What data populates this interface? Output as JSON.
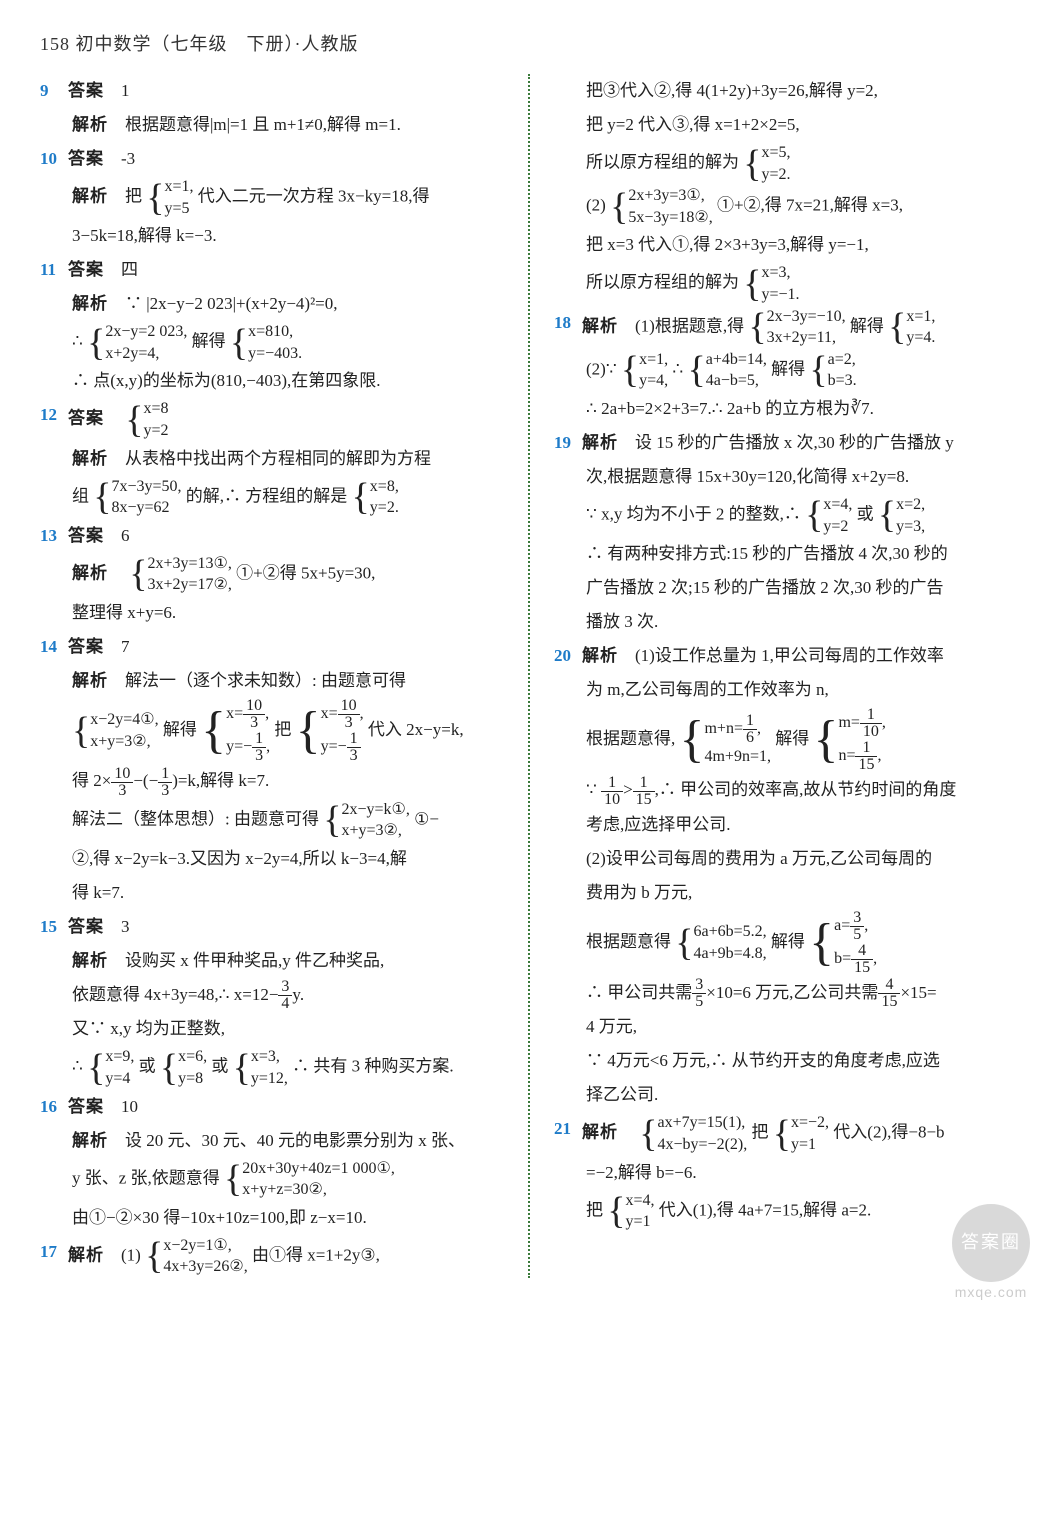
{
  "header": "158 初中数学（七年级　下册）·人教版",
  "left": {
    "q9": {
      "num": "9",
      "ans_label": "答案",
      "ans": "1",
      "exp_label": "解析",
      "exp": "根据题意得|m|=1 且 m+1≠0,解得 m=1."
    },
    "q10": {
      "num": "10",
      "ans_label": "答案",
      "ans": "-3",
      "exp_label": "解析",
      "exp_pre": "把",
      "sys_r1": "x=1,",
      "sys_r2": "y=5",
      "exp_mid": "代入二元一次方程 3x−ky=18,得",
      "exp2": "3−5k=18,解得 k=−3."
    },
    "q11": {
      "num": "11",
      "ans_label": "答案",
      "ans": "四",
      "exp_label": "解析",
      "l1": "∵ |2x−y−2 023|+(x+2y−4)²=0,",
      "l2_pre": "∴ ",
      "l2_s1": "2x−y=2 023,",
      "l2_s2": "x+2y=4,",
      "l2_mid": "解得",
      "l2_t1": "x=810,",
      "l2_t2": "y=−403.",
      "l3": "∴ 点(x,y)的坐标为(810,−403),在第四象限."
    },
    "q12": {
      "num": "12",
      "ans_label": "答案",
      "s1": "x=8",
      "s2": "y=2",
      "exp_label": "解析",
      "l1": "从表格中找出两个方程相同的解即为方程",
      "l2_pre": "组",
      "l2_s1": "7x−3y=50,",
      "l2_s2": "8x−y=62",
      "l2_mid": "的解,∴ 方程组的解是",
      "l2_t1": "x=8,",
      "l2_t2": "y=2."
    },
    "q13": {
      "num": "13",
      "ans_label": "答案",
      "ans": "6",
      "exp_label": "解析",
      "s1": "2x+3y=13①,",
      "s2": "3x+2y=17②,",
      "mid": "①+②得 5x+5y=30,",
      "l2": "整理得 x+y=6."
    },
    "q14": {
      "num": "14",
      "ans_label": "答案",
      "ans": "7",
      "exp_label": "解析",
      "l1": "解法一（逐个求未知数）: 由题意可得",
      "s1": "x−2y=4①,",
      "s2": "x+y=3②,",
      "mid1": "解得",
      "t1a": "x=",
      "t1n": "10",
      "t1d": "3",
      "t1c": ",",
      "t2a": "y=−",
      "t2n": "1",
      "t2d": "3",
      "t2c": ",",
      "mid2": "把",
      "u1a": "x=",
      "u1n": "10",
      "u1d": "3",
      "u1c": ",",
      "u2a": "y=−",
      "u2n": "1",
      "u2d": "3",
      "mid3": "代入 2x−y=k,",
      "l2a": "得 2×",
      "l2n1": "10",
      "l2d1": "3",
      "l2b": "−(−",
      "l2n2": "1",
      "l2d2": "3",
      "l2c": ")=k,解得 k=7.",
      "l3a": "解法二（整体思想）: 由题意可得",
      "v1": "2x−y=k①,",
      "v2": "x+y=3②,",
      "l3b": "①−",
      "l4": "②,得 x−2y=k−3.又因为 x−2y=4,所以 k−3=4,解",
      "l5": "得 k=7."
    },
    "q15": {
      "num": "15",
      "ans_label": "答案",
      "ans": "3",
      "exp_label": "解析",
      "l1": "设购买 x 件甲种奖品,y 件乙种奖品,",
      "l2a": "依题意得 4x+3y=48,∴ x=12−",
      "l2n": "3",
      "l2d": "4",
      "l2b": "y.",
      "l3": "又∵ x,y 均为正整数,",
      "l4_pre": "∴ ",
      "a1": "x=9,",
      "a2": "y=4",
      "or1": "或",
      "b1": "x=6,",
      "b2": "y=8",
      "or2": "或",
      "c1": "x=3,",
      "c2": "y=12,",
      "l4_end": "∴ 共有 3 种购买方案."
    },
    "q16": {
      "num": "16",
      "ans_label": "答案",
      "ans": "10",
      "exp_label": "解析",
      "l1": "设 20 元、30 元、40 元的电影票分别为 x 张、",
      "l2_pre": "y 张、z 张,依题意得",
      "s1": "20x+30y+40z=1 000①,",
      "s2": "x+y+z=30②,",
      "l3": "由①−②×30 得−10x+10z=100,即 z−x=10."
    },
    "q17": {
      "num": "17",
      "exp_label": "解析",
      "pre": "(1)",
      "s1": "x−2y=1①,",
      "s2": "4x+3y=26②,",
      "mid": "由①得 x=1+2y③,"
    }
  },
  "right": {
    "q17c": {
      "l1": "把③代入②,得 4(1+2y)+3y=26,解得 y=2,",
      "l2": "把 y=2 代入③,得 x=1+2×2=5,",
      "l3_pre": "所以原方程组的解为",
      "l3_s1": "x=5,",
      "l3_s2": "y=2.",
      "l4_pre": "(2)",
      "l4_s1": "2x+3y=3①,",
      "l4_s2": "5x−3y=18②,",
      "l4_mid": "①+②,得 7x=21,解得 x=3,",
      "l5": "把 x=3 代入①,得 2×3+3y=3,解得 y=−1,",
      "l6_pre": "所以原方程组的解为",
      "l6_s1": "x=3,",
      "l6_s2": "y=−1."
    },
    "q18": {
      "num": "18",
      "exp_label": "解析",
      "l1_pre": "(1)根据题意,得",
      "l1_s1": "2x−3y=−10,",
      "l1_s2": "3x+2y=11,",
      "l1_mid": "解得",
      "l1_t1": "x=1,",
      "l1_t2": "y=4.",
      "l2_pre": "(2)∵ ",
      "l2_s1": "x=1,",
      "l2_s2": "y=4,",
      "l2_mid": "∴ ",
      "l2_t1": "a+4b=14,",
      "l2_t2": "4a−b=5,",
      "l2_mid2": "解得",
      "l2_u1": "a=2,",
      "l2_u2": "b=3.",
      "l3": "∴ 2a+b=2×2+3=7.∴ 2a+b 的立方根为∛7."
    },
    "q19": {
      "num": "19",
      "exp_label": "解析",
      "l1": "设 15 秒的广告播放 x 次,30 秒的广告播放 y",
      "l2": "次,根据题意得 15x+30y=120,化简得 x+2y=8.",
      "l3_pre": "∵ x,y 均为不小于 2 的整数,∴ ",
      "l3_s1": "x=4,",
      "l3_s2": "y=2",
      "or": "或",
      "l3_t1": "x=2,",
      "l3_t2": "y=3,",
      "l4": "∴ 有两种安排方式:15 秒的广告播放 4 次,30 秒的",
      "l5": "广告播放 2 次;15 秒的广告播放 2 次,30 秒的广告",
      "l6": "播放 3 次."
    },
    "q20": {
      "num": "20",
      "exp_label": "解析",
      "l1": "(1)设工作总量为 1,甲公司每周的工作效率",
      "l2": "为 m,乙公司每周的工作效率为 n,",
      "l3_pre": "根据题意得,",
      "s1a": "m+n=",
      "s1n": "1",
      "s1d": "6",
      "s1b": ",",
      "s2": "4m+9n=1,",
      "mid": "解得",
      "t1a": "m=",
      "t1n": "1",
      "t1d": "10",
      "t1b": ",",
      "t2a": "n=",
      "t2n": "1",
      "t2d": "15",
      "t2b": ",",
      "l4a": "∵ ",
      "l4n1": "1",
      "l4d1": "10",
      "l4b": ">",
      "l4n2": "1",
      "l4d2": "15",
      "l4c": ",∴ 甲公司的效率高,故从节约时间的角度",
      "l5": "考虑,应选择甲公司.",
      "l6": "(2)设甲公司每周的费用为 a 万元,乙公司每周的",
      "l7": "费用为 b 万元,",
      "l8_pre": "根据题意得",
      "u1": "6a+6b=5.2,",
      "u2": "4a+9b=4.8,",
      "mid2": "解得",
      "v1a": "a=",
      "v1n": "3",
      "v1d": "5",
      "v1b": ",",
      "v2a": "b=",
      "v2n": "4",
      "v2d": "15",
      "v2b": ",",
      "l9a": "∴ 甲公司共需",
      "l9n1": "3",
      "l9d1": "5",
      "l9b": "×10=6 万元,乙公司共需",
      "l9n2": "4",
      "l9d2": "15",
      "l9c": "×15=",
      "l10": "4 万元,",
      "l11": "∵ 4万元<6 万元,∴ 从节约开支的角度考虑,应选",
      "l12": "择乙公司."
    },
    "q21": {
      "num": "21",
      "exp_label": "解析",
      "s1": "ax+7y=15(1),",
      "s2": "4x−by=−2(2),",
      "mid1": "把",
      "t1": "x=−2,",
      "t2": "y=1",
      "mid2": "代入(2),得−8−b",
      "l2": "=−2,解得 b=−6.",
      "l3_pre": "把",
      "u1": "x=4,",
      "u2": "y=1",
      "l3_mid": "代入(1),得 4a+7=15,解得 a=2."
    }
  },
  "watermark": {
    "text": "答案圈",
    "url": "mxqe.com"
  }
}
